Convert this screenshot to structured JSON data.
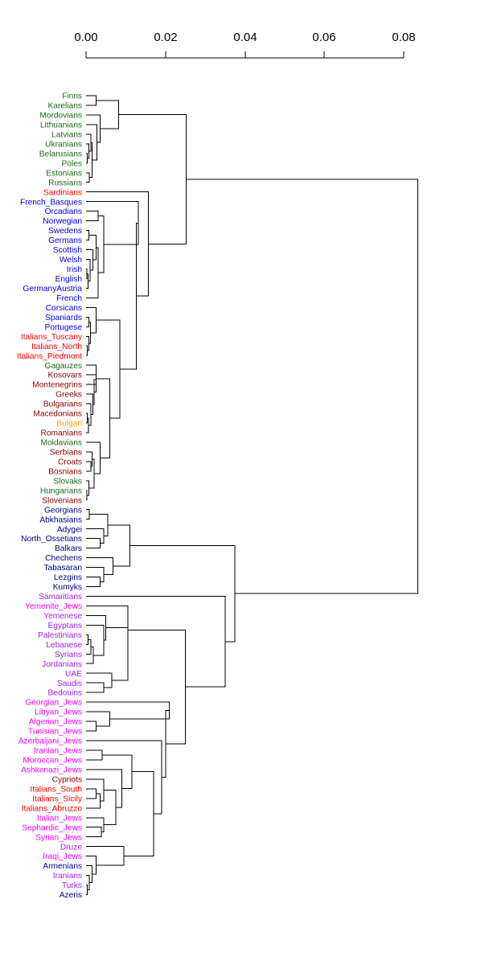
{
  "axis": {
    "ticks": [
      "0.00",
      "0.02",
      "0.04",
      "0.06",
      "0.08"
    ],
    "range": [
      0,
      0.08
    ]
  },
  "palette": {
    "green": "#1a6b1a",
    "red": "#ff0000",
    "blue": "#0000ee",
    "darkred": "#8b0000",
    "orange": "#ffa500",
    "navy": "#00008b",
    "purple": "#a020f0",
    "magenta": "#ff00ff",
    "line": "#000000"
  },
  "leaves": [
    {
      "label": "Finns",
      "color": "green"
    },
    {
      "label": "Karelians",
      "color": "green"
    },
    {
      "label": "Mordovians",
      "color": "green"
    },
    {
      "label": "Lithuanians",
      "color": "green"
    },
    {
      "label": "Latvians",
      "color": "green"
    },
    {
      "label": "Ukranians",
      "color": "green"
    },
    {
      "label": "Belarusians",
      "color": "green"
    },
    {
      "label": "Poles",
      "color": "green"
    },
    {
      "label": "Estonians",
      "color": "green"
    },
    {
      "label": "Russians",
      "color": "green"
    },
    {
      "label": "Sardinians",
      "color": "red"
    },
    {
      "label": "French_Basques",
      "color": "blue"
    },
    {
      "label": "Orcadians",
      "color": "blue"
    },
    {
      "label": "Norwegian",
      "color": "blue"
    },
    {
      "label": "Swedens",
      "color": "blue"
    },
    {
      "label": "Germans",
      "color": "blue"
    },
    {
      "label": "Scottish",
      "color": "blue"
    },
    {
      "label": "Welsh",
      "color": "blue"
    },
    {
      "label": "Irish",
      "color": "blue"
    },
    {
      "label": "English",
      "color": "blue"
    },
    {
      "label": "GermanyAustria",
      "color": "blue"
    },
    {
      "label": "French",
      "color": "blue"
    },
    {
      "label": "Corsicans",
      "color": "blue"
    },
    {
      "label": "Spaniards",
      "color": "blue"
    },
    {
      "label": "Portugese",
      "color": "blue"
    },
    {
      "label": "Italians_Tuscany",
      "color": "red"
    },
    {
      "label": "Italians_North",
      "color": "red"
    },
    {
      "label": "Italians_Piedmont",
      "color": "red"
    },
    {
      "label": "Gagauzes",
      "color": "green"
    },
    {
      "label": "Kosovars",
      "color": "darkred"
    },
    {
      "label": "Montenegrins",
      "color": "darkred"
    },
    {
      "label": "Greeks",
      "color": "darkred"
    },
    {
      "label": "Bulgarians",
      "color": "darkred"
    },
    {
      "label": "Macedonians",
      "color": "darkred"
    },
    {
      "label": "Bulgari",
      "color": "orange"
    },
    {
      "label": "Romanians",
      "color": "darkred"
    },
    {
      "label": "Moldavians",
      "color": "green"
    },
    {
      "label": "Serbians",
      "color": "darkred"
    },
    {
      "label": "Croats",
      "color": "darkred"
    },
    {
      "label": "Bosnians",
      "color": "darkred"
    },
    {
      "label": "Slovaks",
      "color": "green"
    },
    {
      "label": "Hungarians",
      "color": "green"
    },
    {
      "label": "Slovenians",
      "color": "darkred"
    },
    {
      "label": "Georgians",
      "color": "navy"
    },
    {
      "label": "Abkhasians",
      "color": "navy"
    },
    {
      "label": "Adygei",
      "color": "navy"
    },
    {
      "label": "North_Ossetians",
      "color": "navy"
    },
    {
      "label": "Balkars",
      "color": "navy"
    },
    {
      "label": "Chechens",
      "color": "navy"
    },
    {
      "label": "Tabasaran",
      "color": "navy"
    },
    {
      "label": "Lezgins",
      "color": "navy"
    },
    {
      "label": "Kumyks",
      "color": "navy"
    },
    {
      "label": "Samaritians",
      "color": "purple"
    },
    {
      "label": "Yemenite_Jews",
      "color": "magenta"
    },
    {
      "label": "Yemenese",
      "color": "purple"
    },
    {
      "label": "Egyptans",
      "color": "purple"
    },
    {
      "label": "Palestinians",
      "color": "purple"
    },
    {
      "label": "Lebanese",
      "color": "purple"
    },
    {
      "label": "Syrians",
      "color": "purple"
    },
    {
      "label": "Jordanians",
      "color": "purple"
    },
    {
      "label": "UAE",
      "color": "purple"
    },
    {
      "label": "Saudis",
      "color": "purple"
    },
    {
      "label": "Bedouins",
      "color": "purple"
    },
    {
      "label": "Georgian_Jews",
      "color": "magenta"
    },
    {
      "label": "Libyan_Jews",
      "color": "magenta"
    },
    {
      "label": "Algerian_Jews",
      "color": "magenta"
    },
    {
      "label": "Tunisian_Jews",
      "color": "magenta"
    },
    {
      "label": "Azerbaijani_Jews",
      "color": "magenta"
    },
    {
      "label": "Iranian_Jews",
      "color": "magenta"
    },
    {
      "label": "Moroccan_Jews",
      "color": "magenta"
    },
    {
      "label": "Ashkenazi_Jews",
      "color": "magenta"
    },
    {
      "label": "Cypriots",
      "color": "darkred"
    },
    {
      "label": "Italians_South",
      "color": "red"
    },
    {
      "label": "Italians_Sicily",
      "color": "red"
    },
    {
      "label": "Italians_Abruzzo",
      "color": "red"
    },
    {
      "label": "Italian_Jews",
      "color": "magenta"
    },
    {
      "label": "Sephardic_Jews",
      "color": "magenta"
    },
    {
      "label": "Syrian_Jews",
      "color": "magenta"
    },
    {
      "label": "Druze",
      "color": "purple"
    },
    {
      "label": "Iraqi_Jews",
      "color": "magenta"
    },
    {
      "label": "Armenians",
      "color": "navy"
    },
    {
      "label": "Iranians",
      "color": "purple"
    },
    {
      "label": "Turks",
      "color": "purple"
    },
    {
      "label": "Azeris",
      "color": "navy"
    }
  ],
  "merges": [
    {
      "a": "L0",
      "b": "L1",
      "h": 0.0025
    },
    {
      "a": "L6",
      "b": "L7",
      "h": 0.0003
    },
    {
      "a": "L5",
      "b": "N1",
      "h": 0.0007
    },
    {
      "a": "L4",
      "b": "N2",
      "h": 0.0012
    },
    {
      "a": "L8",
      "b": "L9",
      "h": 0.0008
    },
    {
      "a": "N3",
      "b": "N4",
      "h": 0.0015
    },
    {
      "a": "L3",
      "b": "N5",
      "h": 0.0027
    },
    {
      "a": "L2",
      "b": "N6",
      "h": 0.0035
    },
    {
      "a": "N0",
      "b": "N7",
      "h": 0.0082
    },
    {
      "a": "L12",
      "b": "L13",
      "h": 0.003
    },
    {
      "a": "L14",
      "b": "L15",
      "h": 0.0007
    },
    {
      "a": "L18",
      "b": "L19",
      "h": 0.0002
    },
    {
      "a": "N11",
      "b": "L20",
      "h": 0.0005
    },
    {
      "a": "L17",
      "b": "N12",
      "h": 0.001
    },
    {
      "a": "L16",
      "b": "N13",
      "h": 0.0017
    },
    {
      "a": "N10",
      "b": "N14",
      "h": 0.0025
    },
    {
      "a": "N15",
      "b": "L21",
      "h": 0.003
    },
    {
      "a": "N9",
      "b": "N16",
      "h": 0.0045
    },
    {
      "a": "L11",
      "b": "N17",
      "h": 0.0132
    },
    {
      "a": "L23",
      "b": "L24",
      "h": 0.0007
    },
    {
      "a": "L26",
      "b": "L27",
      "h": 0.0003
    },
    {
      "a": "L25",
      "b": "N20",
      "h": 0.0007
    },
    {
      "a": "N19",
      "b": "N21",
      "h": 0.0011
    },
    {
      "a": "L22",
      "b": "N22",
      "h": 0.0025
    },
    {
      "a": "L29",
      "b": "L30",
      "h": 0.0025
    },
    {
      "a": "L33",
      "b": "L34",
      "h": 0.0003
    },
    {
      "a": "N25",
      "b": "L35",
      "h": 0.0006
    },
    {
      "a": "L32",
      "b": "N26",
      "h": 0.0012
    },
    {
      "a": "L31",
      "b": "N27",
      "h": 0.0017
    },
    {
      "a": "N24",
      "b": "N28",
      "h": 0.002
    },
    {
      "a": "L28",
      "b": "N29",
      "h": 0.0025
    },
    {
      "a": "L38",
      "b": "L39",
      "h": 0.0012
    },
    {
      "a": "L37",
      "b": "N31",
      "h": 0.0015
    },
    {
      "a": "L41",
      "b": "L42",
      "h": 0.0002
    },
    {
      "a": "L40",
      "b": "N33",
      "h": 0.0007
    },
    {
      "a": "N32",
      "b": "N34",
      "h": 0.002
    },
    {
      "a": "L36",
      "b": "N35",
      "h": 0.0035
    },
    {
      "a": "N30",
      "b": "N36",
      "h": 0.006
    },
    {
      "a": "N23",
      "b": "N37",
      "h": 0.0085
    },
    {
      "a": "N18",
      "b": "N38",
      "h": 0.0127
    },
    {
      "a": "L10",
      "b": "N39",
      "h": 0.0157
    },
    {
      "a": "N8",
      "b": "N40",
      "h": 0.0252
    },
    {
      "a": "L43",
      "b": "L44",
      "h": 0.0008
    },
    {
      "a": "L46",
      "b": "L47",
      "h": 0.0035
    },
    {
      "a": "L45",
      "b": "N43",
      "h": 0.0045
    },
    {
      "a": "N42",
      "b": "N44",
      "h": 0.0055
    },
    {
      "a": "L50",
      "b": "L51",
      "h": 0.0035
    },
    {
      "a": "L49",
      "b": "N46",
      "h": 0.0045
    },
    {
      "a": "L48",
      "b": "N47",
      "h": 0.0068
    },
    {
      "a": "N45",
      "b": "N48",
      "h": 0.011
    },
    {
      "a": "L56",
      "b": "L57",
      "h": 0.0005
    },
    {
      "a": "N50",
      "b": "L58",
      "h": 0.0012
    },
    {
      "a": "N51",
      "b": "L59",
      "h": 0.0018
    },
    {
      "a": "L55",
      "b": "N52",
      "h": 0.0045
    },
    {
      "a": "L54",
      "b": "N53",
      "h": 0.005
    },
    {
      "a": "L61",
      "b": "L62",
      "h": 0.0045
    },
    {
      "a": "L60",
      "b": "N55",
      "h": 0.0065
    },
    {
      "a": "N54",
      "b": "N56",
      "h": 0.0105
    },
    {
      "a": "L53",
      "b": "N57",
      "h": 0.0105
    },
    {
      "a": "L65",
      "b": "L66",
      "h": 0.0025
    },
    {
      "a": "L64",
      "b": "N59",
      "h": 0.006
    },
    {
      "a": "L63",
      "b": "N60",
      "h": 0.021
    },
    {
      "a": "L68",
      "b": "L69",
      "h": 0.004
    },
    {
      "a": "L72",
      "b": "L73",
      "h": 0.0025
    },
    {
      "a": "N63",
      "b": "L74",
      "h": 0.0035
    },
    {
      "a": "L71",
      "b": "N64",
      "h": 0.0045
    },
    {
      "a": "L76",
      "b": "L77",
      "h": 0.0038
    },
    {
      "a": "L75",
      "b": "N66",
      "h": 0.0045
    },
    {
      "a": "N65",
      "b": "N67",
      "h": 0.0075
    },
    {
      "a": "L70",
      "b": "N68",
      "h": 0.009
    },
    {
      "a": "N62",
      "b": "N69",
      "h": 0.0115
    },
    {
      "a": "L82",
      "b": "L83",
      "h": 0.0003
    },
    {
      "a": "L81",
      "b": "N71",
      "h": 0.0008
    },
    {
      "a": "L80",
      "b": "N72",
      "h": 0.0015
    },
    {
      "a": "L79",
      "b": "N73",
      "h": 0.0025
    },
    {
      "a": "L78",
      "b": "N74",
      "h": 0.0095
    },
    {
      "a": "N70",
      "b": "N75",
      "h": 0.017
    },
    {
      "a": "L67",
      "b": "N76",
      "h": 0.019
    },
    {
      "a": "N61",
      "b": "N77",
      "h": 0.02
    },
    {
      "a": "N58",
      "b": "N78",
      "h": 0.025
    },
    {
      "a": "L52",
      "b": "N79",
      "h": 0.035
    },
    {
      "a": "N49",
      "b": "N80",
      "h": 0.0375
    },
    {
      "a": "N41",
      "b": "N81",
      "h": 0.0835
    }
  ]
}
